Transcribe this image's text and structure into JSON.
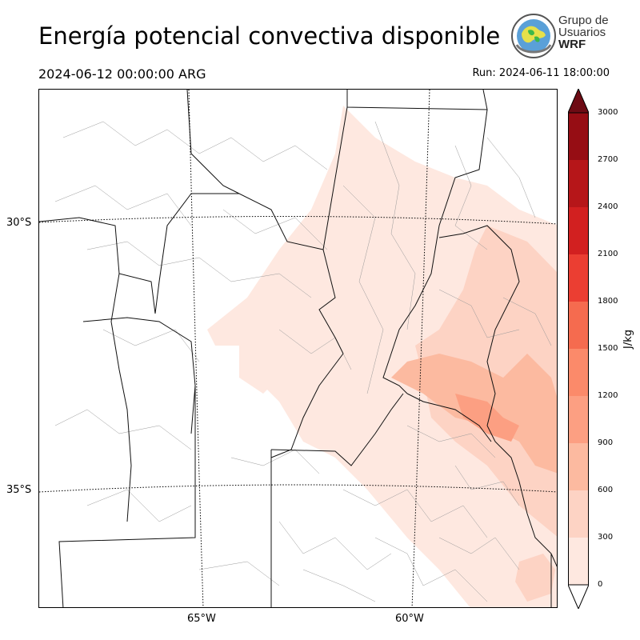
{
  "header": {
    "title": "Energía potencial convectiva disponible",
    "valid_time": "2024-06-12 00:00:00 ARG",
    "run_time": "Run: 2024-06-11 18:00:00"
  },
  "logo": {
    "line1": "Grupo de",
    "line2": "Usuarios",
    "line3": "WRF"
  },
  "map": {
    "lat_labels": [
      "30°S",
      "35°S"
    ],
    "lon_labels": [
      "65°W",
      "60°W"
    ]
  },
  "colorbar": {
    "unit": "J/kg",
    "levels": [
      "0",
      "300",
      "600",
      "900",
      "1200",
      "1500",
      "1800",
      "2100",
      "2400",
      "2700",
      "3000"
    ],
    "colors": [
      "#fee8e0",
      "#fdd3c4",
      "#fcbaa0",
      "#fc9f82",
      "#fb8a6a",
      "#f56b4f",
      "#eb3e32",
      "#d22020",
      "#b61619",
      "#960d14",
      "#6e0b14"
    ]
  }
}
